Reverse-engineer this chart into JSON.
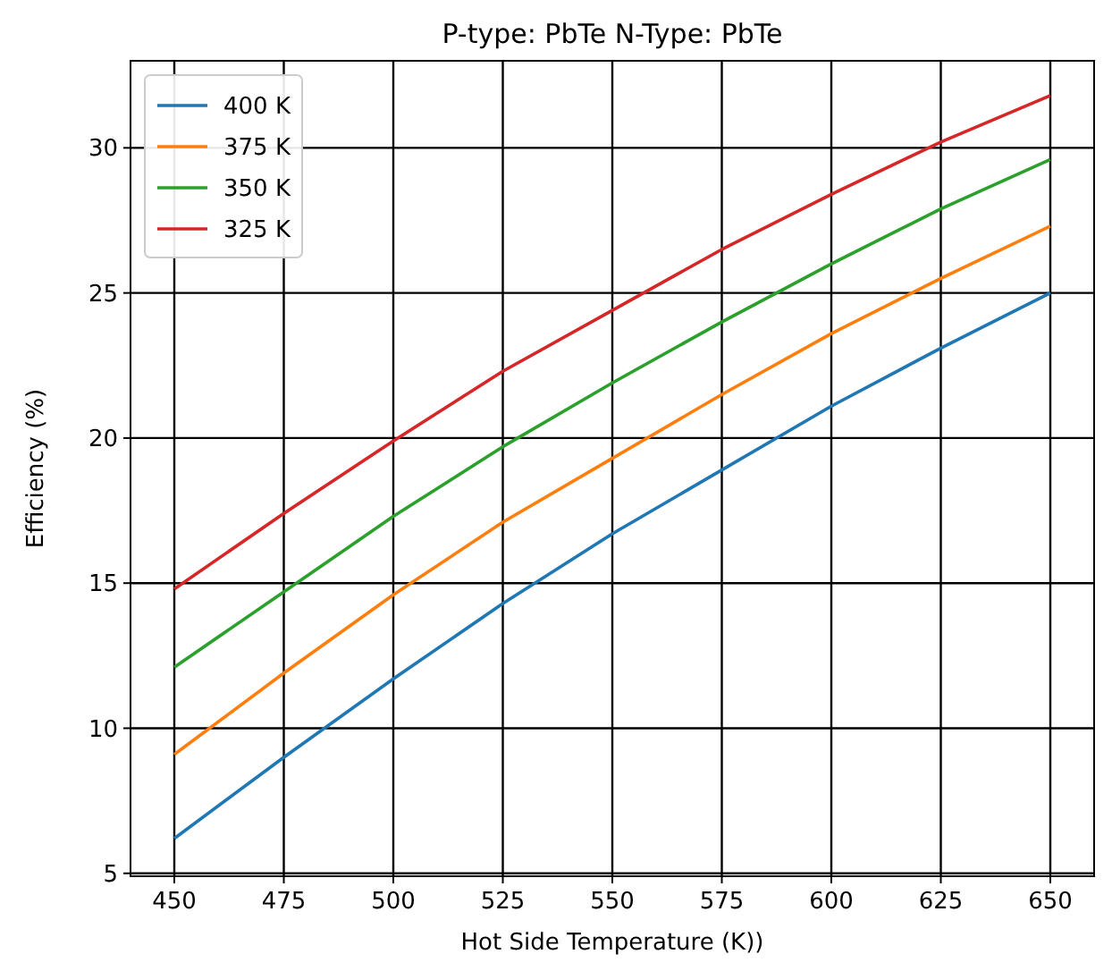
{
  "chart_data": {
    "type": "line",
    "title": "P-type: PbTe N-Type: PbTe",
    "xlabel": "Hot Side Temperature (K))",
    "ylabel": "Efficiency (%)",
    "x": [
      450,
      475,
      500,
      525,
      550,
      575,
      600,
      625,
      650
    ],
    "series": [
      {
        "name": "400 K",
        "color": "#1f77b4",
        "values": [
          6.2,
          9.0,
          11.7,
          14.3,
          16.7,
          18.9,
          21.1,
          23.1,
          25.0
        ]
      },
      {
        "name": "375 K",
        "color": "#ff7f0e",
        "values": [
          9.1,
          11.9,
          14.6,
          17.1,
          19.3,
          21.5,
          23.6,
          25.5,
          27.3
        ]
      },
      {
        "name": "350 K",
        "color": "#2ca02c",
        "values": [
          12.1,
          14.7,
          17.3,
          19.7,
          21.9,
          24.0,
          26.0,
          27.9,
          29.6
        ]
      },
      {
        "name": "325 K",
        "color": "#d62728",
        "values": [
          14.8,
          17.4,
          19.9,
          22.3,
          24.4,
          26.5,
          28.4,
          30.2,
          31.8
        ]
      }
    ],
    "xlim": [
      440,
      660
    ],
    "ylim": [
      4.9,
      33.0
    ],
    "xticks": [
      450,
      475,
      500,
      525,
      550,
      575,
      600,
      625,
      650
    ],
    "yticks": [
      5,
      10,
      15,
      20,
      25,
      30
    ],
    "grid": true,
    "legend": "top left",
    "marker": "none",
    "line_style": "solid"
  }
}
